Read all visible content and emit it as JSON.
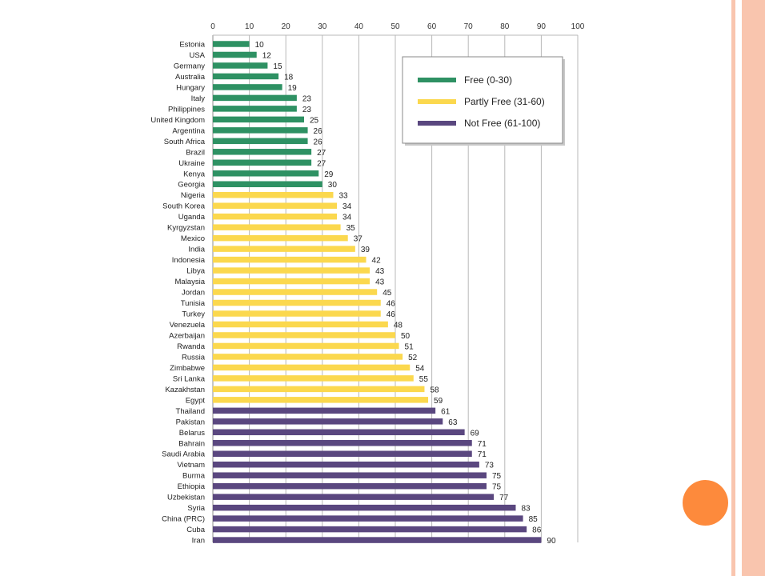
{
  "chart_data": {
    "type": "bar",
    "orientation": "horizontal",
    "title": "",
    "xlabel": "",
    "ylabel": "",
    "xlim": [
      0,
      100
    ],
    "x_ticks": [
      0,
      10,
      20,
      30,
      40,
      50,
      60,
      70,
      80,
      90,
      100
    ],
    "x_axis_position": "top",
    "grid": true,
    "legend_position": "top-right",
    "categories": [
      "Estonia",
      "USA",
      "Germany",
      "Australia",
      "Hungary",
      "Italy",
      "Philippines",
      "United Kingdom",
      "Argentina",
      "South Africa",
      "Brazil",
      "Ukraine",
      "Kenya",
      "Georgia",
      "Nigeria",
      "South Korea",
      "Uganda",
      "Kyrgyzstan",
      "Mexico",
      "India",
      "Indonesia",
      "Libya",
      "Malaysia",
      "Jordan",
      "Tunisia",
      "Turkey",
      "Venezuela",
      "Azerbaijan",
      "Rwanda",
      "Russia",
      "Zimbabwe",
      "Sri Lanka",
      "Kazakhstan",
      "Egypt",
      "Thailand",
      "Pakistan",
      "Belarus",
      "Bahrain",
      "Saudi Arabia",
      "Vietnam",
      "Burma",
      "Ethiopia",
      "Uzbekistan",
      "Syria",
      "China (PRC)",
      "Cuba",
      "Iran"
    ],
    "values": [
      10,
      12,
      15,
      18,
      19,
      23,
      23,
      25,
      26,
      26,
      27,
      27,
      29,
      30,
      33,
      34,
      34,
      35,
      37,
      39,
      42,
      43,
      43,
      45,
      46,
      46,
      48,
      50,
      51,
      52,
      54,
      55,
      58,
      59,
      61,
      63,
      69,
      71,
      71,
      73,
      75,
      75,
      77,
      83,
      85,
      86,
      90
    ],
    "series": [
      {
        "name": "Free (0-30)",
        "color": "#2e9163"
      },
      {
        "name": "Partly Free (31-60)",
        "color": "#fbd84e"
      },
      {
        "name": "Not Free (61-100)",
        "color": "#5a477f"
      }
    ]
  }
}
